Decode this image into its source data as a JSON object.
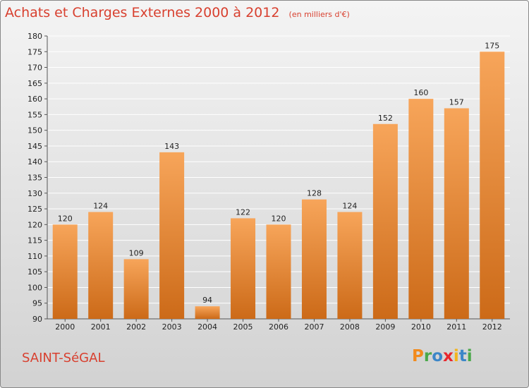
{
  "title": "Achats et Charges Externes 2000 à 2012",
  "unit": "(en milliers d'€)",
  "commune": "SAINT-SéGAL",
  "logo": {
    "text": "Proxiti",
    "letters": [
      {
        "ch": "P",
        "color": "#f28a1c"
      },
      {
        "ch": "r",
        "color": "#4aa84a"
      },
      {
        "ch": "o",
        "color": "#3b86c8"
      },
      {
        "ch": "x",
        "color": "#e8262c"
      },
      {
        "ch": "i",
        "color": "#f2b41c"
      },
      {
        "ch": "t",
        "color": "#3b86c8"
      },
      {
        "ch": "i",
        "color": "#4aa84a"
      }
    ]
  },
  "colors": {
    "title": "#d8402f",
    "bar_light": "#f7a55a",
    "bar_dark": "#cc6a18",
    "grid": "#ffffff"
  },
  "chart_data": {
    "type": "bar",
    "categories": [
      "2000",
      "2001",
      "2002",
      "2003",
      "2004",
      "2005",
      "2006",
      "2007",
      "2008",
      "2009",
      "2010",
      "2011",
      "2012"
    ],
    "values": [
      120,
      124,
      109,
      143,
      94,
      122,
      120,
      128,
      124,
      152,
      160,
      157,
      175
    ],
    "title": "Achats et Charges Externes 2000 à 2012",
    "xlabel": "",
    "ylabel": "",
    "ylim": [
      90,
      180
    ],
    "yticks": [
      90,
      95,
      100,
      105,
      110,
      115,
      120,
      125,
      130,
      135,
      140,
      145,
      150,
      155,
      160,
      165,
      170,
      175,
      180
    ],
    "grid": true,
    "data_labels": true
  }
}
